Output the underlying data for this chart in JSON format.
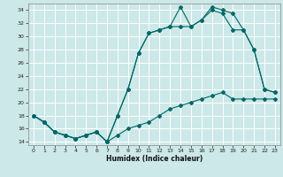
{
  "title": "",
  "xlabel": "Humidex (Indice chaleur)",
  "bg_color": "#cce8e8",
  "grid_color": "#ffffff",
  "line_color": "#006666",
  "xlim": [
    -0.5,
    23.5
  ],
  "ylim": [
    13.5,
    35
  ],
  "xticks": [
    0,
    1,
    2,
    3,
    4,
    5,
    6,
    7,
    8,
    9,
    10,
    11,
    12,
    13,
    14,
    15,
    16,
    17,
    18,
    19,
    20,
    21,
    22,
    23
  ],
  "yticks": [
    14,
    16,
    18,
    20,
    22,
    24,
    26,
    28,
    30,
    32,
    34
  ],
  "line1_x": [
    0,
    1,
    2,
    3,
    4,
    5,
    6,
    7,
    8,
    9,
    10,
    11,
    12,
    13,
    14,
    15,
    16,
    17,
    18,
    19,
    20,
    21,
    22,
    23
  ],
  "line1_y": [
    18,
    17,
    15.5,
    15,
    14.5,
    15,
    15.5,
    14,
    18,
    22,
    27.5,
    30.5,
    31,
    31.5,
    31.5,
    31.5,
    32.5,
    34.5,
    34,
    33.5,
    31,
    28,
    22,
    21.5
  ],
  "line2_x": [
    0,
    1,
    2,
    3,
    4,
    5,
    6,
    7,
    8,
    9,
    10,
    11,
    12,
    13,
    14,
    15,
    16,
    17,
    18,
    19,
    20,
    21,
    22,
    23
  ],
  "line2_y": [
    18,
    17,
    15.5,
    15,
    14.5,
    15,
    15.5,
    14,
    18,
    22,
    27.5,
    30.5,
    31,
    31.5,
    34.5,
    31.5,
    32.5,
    34,
    33.5,
    31,
    31,
    28,
    22,
    21.5
  ],
  "line3_x": [
    0,
    1,
    2,
    3,
    4,
    5,
    6,
    7,
    8,
    9,
    10,
    11,
    12,
    13,
    14,
    15,
    16,
    17,
    18,
    19,
    20,
    21,
    22,
    23
  ],
  "line3_y": [
    18,
    17,
    15.5,
    15,
    14.5,
    15,
    15.5,
    14,
    15,
    16,
    16.5,
    17,
    18,
    19,
    19.5,
    20,
    20.5,
    21,
    21.5,
    20.5,
    20.5,
    20.5,
    20.5,
    20.5
  ]
}
